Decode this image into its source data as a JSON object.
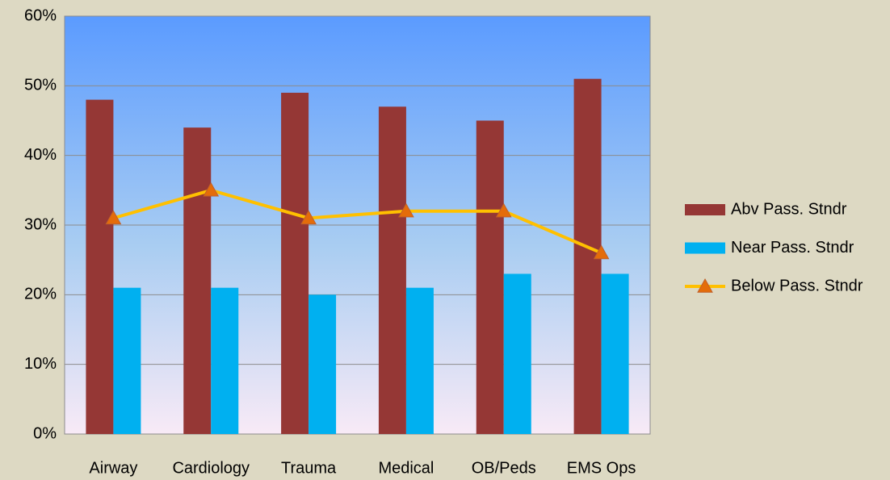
{
  "chart_data": {
    "type": "bar",
    "categories": [
      "Airway",
      "Cardiology",
      "Trauma",
      "Medical",
      "OB/Peds",
      "EMS Ops"
    ],
    "series": [
      {
        "name": "Abv Pass. Stndr",
        "color": "#953735",
        "values": [
          48,
          44,
          49,
          47,
          45,
          51
        ]
      },
      {
        "name": "Near Pass. Stndr",
        "color": "#00b0f0",
        "values": [
          21,
          21,
          20,
          21,
          23,
          23
        ]
      },
      {
        "name": "Below Pass. Stndr",
        "type": "line",
        "color": "#ffc000",
        "marker_color": "#e46c0a",
        "values": [
          31,
          35,
          31,
          32,
          32,
          26
        ]
      }
    ],
    "ylim": [
      0,
      60
    ],
    "yticks": [
      {
        "value": 0,
        "label": "0%"
      },
      {
        "value": 10,
        "label": "10%"
      },
      {
        "value": 20,
        "label": "20%"
      },
      {
        "value": 30,
        "label": "30%"
      },
      {
        "value": 40,
        "label": "40%"
      },
      {
        "value": 50,
        "label": "50%"
      },
      {
        "value": 60,
        "label": "60%"
      }
    ],
    "grid": true,
    "legend": "right"
  }
}
